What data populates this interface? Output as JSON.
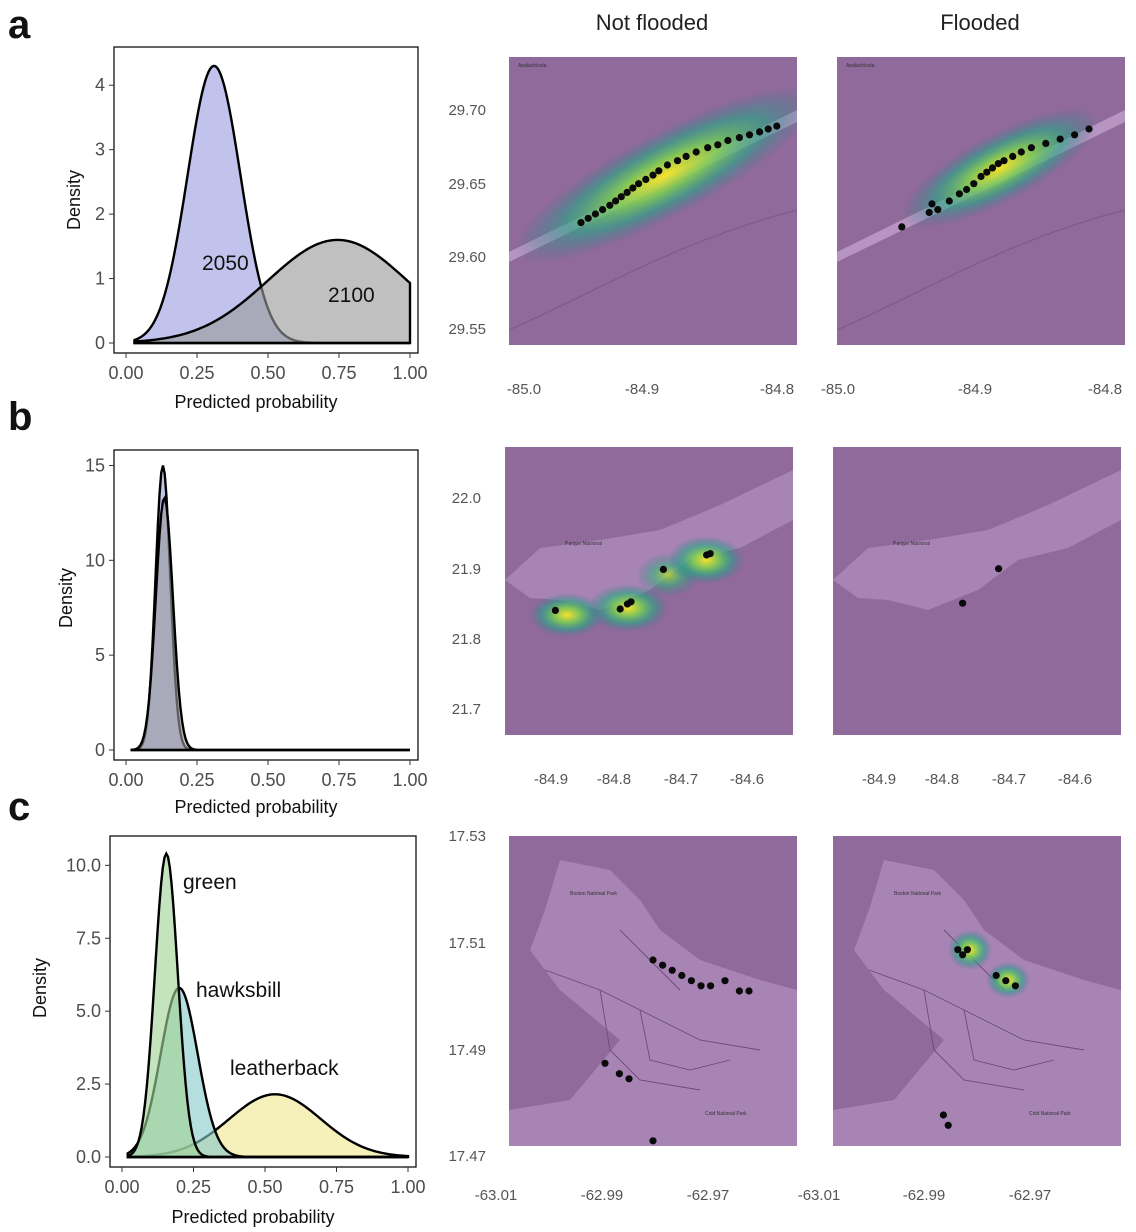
{
  "panel_letters": [
    "a",
    "b",
    "c"
  ],
  "column_titles": {
    "left": "Not flooded",
    "right": "Flooded"
  },
  "colors": {
    "y2050": "#9b9ee0",
    "y2100": "#9a9a9a",
    "green": "#9fd394",
    "hawksbill": "#88c9c9",
    "leatherback": "#f1e68f",
    "ocean": "#8f6a9a",
    "land": "#a784b3",
    "track": "#c8a6d2",
    "road": "#6d4c78"
  },
  "chart_data": [
    {
      "type": "area",
      "panel": "a",
      "xlabel": "Predicted probability",
      "ylabel": "Density",
      "xlim": [
        0,
        1
      ],
      "ylim": [
        0,
        4.5
      ],
      "xticks": [
        "0.00",
        "0.25",
        "0.50",
        "0.75",
        "1.00"
      ],
      "yticks": [
        "0",
        "1",
        "2",
        "3",
        "4"
      ],
      "series": [
        {
          "name": "2050",
          "color_key": "y2050",
          "mean": 0.31,
          "sd": 0.093,
          "peak": 4.3,
          "x_from": 0.03,
          "x_to": 1.0
        },
        {
          "name": "2100",
          "color_key": "y2100",
          "mean": 0.745,
          "sd": 0.245,
          "peak": 1.6,
          "x_from": 0.03,
          "x_to": 1.0
        }
      ]
    },
    {
      "type": "area",
      "panel": "b",
      "xlabel": "Predicted probability",
      "ylabel": "Density",
      "xlim": [
        0,
        1
      ],
      "ylim": [
        0,
        15.5
      ],
      "xticks": [
        "0.00",
        "0.25",
        "0.50",
        "0.75",
        "1.00"
      ],
      "yticks": [
        "0",
        "5",
        "10",
        "15"
      ],
      "series": [
        {
          "name": "",
          "color_key": "y2050",
          "mean": 0.13,
          "sd": 0.026,
          "peak": 15.0,
          "x_from": 0.02,
          "x_to": 1.0
        },
        {
          "name": "",
          "color_key": "y2100",
          "mean": 0.135,
          "sd": 0.03,
          "peak": 13.3,
          "x_from": 0.02,
          "x_to": 1.0
        }
      ]
    },
    {
      "type": "area",
      "panel": "c",
      "xlabel": "Predicted probability",
      "ylabel": "Density",
      "xlim": [
        0,
        1
      ],
      "ylim": [
        0,
        10.8
      ],
      "xticks": [
        "0.00",
        "0.25",
        "0.50",
        "0.75",
        "1.00"
      ],
      "yticks": [
        "0.0",
        "2.5",
        "5.0",
        "7.5",
        "10.0"
      ],
      "series": [
        {
          "name": "leatherback",
          "color_key": "leatherback",
          "mean": 0.535,
          "sd": 0.16,
          "peak": 2.15,
          "x_from": 0.02,
          "x_to": 1.0
        },
        {
          "name": "hawksbill",
          "color_key": "hawksbill",
          "mean": 0.2,
          "sd": 0.065,
          "peak": 5.8,
          "x_from": 0.02,
          "x_to": 1.0
        },
        {
          "name": "green",
          "color_key": "green",
          "mean": 0.155,
          "sd": 0.04,
          "peak": 10.4,
          "x_from": 0.02,
          "x_to": 1.0
        }
      ]
    },
    {
      "type": "scatter",
      "panel": "a",
      "map": "not-flooded",
      "xlim": [
        -85.0,
        -84.8
      ],
      "ylim": [
        29.53,
        29.73
      ],
      "xticks": [
        "-85.0",
        "-84.9",
        "-84.8"
      ],
      "yticks": [
        "29.55",
        "29.60",
        "29.65",
        "29.70"
      ],
      "points": [
        [
          -84.95,
          29.615
        ],
        [
          -84.945,
          29.618
        ],
        [
          -84.94,
          29.621
        ],
        [
          -84.935,
          29.624
        ],
        [
          -84.93,
          29.627
        ],
        [
          -84.926,
          29.63
        ],
        [
          -84.922,
          29.633
        ],
        [
          -84.918,
          29.636
        ],
        [
          -84.914,
          29.639
        ],
        [
          -84.91,
          29.642
        ],
        [
          -84.905,
          29.645
        ],
        [
          -84.9,
          29.648
        ],
        [
          -84.896,
          29.651
        ],
        [
          -84.89,
          29.655
        ],
        [
          -84.883,
          29.658
        ],
        [
          -84.877,
          29.661
        ],
        [
          -84.87,
          29.664
        ],
        [
          -84.862,
          29.667
        ],
        [
          -84.855,
          29.669
        ],
        [
          -84.848,
          29.672
        ],
        [
          -84.84,
          29.674
        ],
        [
          -84.833,
          29.676
        ],
        [
          -84.826,
          29.678
        ],
        [
          -84.82,
          29.68
        ],
        [
          -84.814,
          29.682
        ]
      ]
    },
    {
      "type": "scatter",
      "panel": "a",
      "map": "flooded",
      "xlim": [
        -85.0,
        -84.8
      ],
      "ylim": [
        29.53,
        29.73
      ],
      "xticks": [
        "-85.0",
        "-84.9",
        "-84.8"
      ],
      "yticks": [],
      "points": [
        [
          -84.955,
          29.612
        ],
        [
          -84.936,
          29.622
        ],
        [
          -84.934,
          29.628
        ],
        [
          -84.93,
          29.624
        ],
        [
          -84.922,
          29.63
        ],
        [
          -84.915,
          29.635
        ],
        [
          -84.91,
          29.638
        ],
        [
          -84.905,
          29.642
        ],
        [
          -84.9,
          29.647
        ],
        [
          -84.896,
          29.65
        ],
        [
          -84.892,
          29.653
        ],
        [
          -84.888,
          29.656
        ],
        [
          -84.884,
          29.658
        ],
        [
          -84.878,
          29.661
        ],
        [
          -84.872,
          29.664
        ],
        [
          -84.865,
          29.667
        ],
        [
          -84.855,
          29.67
        ],
        [
          -84.845,
          29.673
        ],
        [
          -84.835,
          29.676
        ],
        [
          -84.825,
          29.68
        ]
      ]
    },
    {
      "type": "scatter",
      "panel": "b",
      "map": "not-flooded",
      "xlim": [
        -84.95,
        -84.55
      ],
      "ylim": [
        21.65,
        22.05
      ],
      "xticks": [
        "-84.9",
        "-84.8",
        "-84.7",
        "-84.6"
      ],
      "yticks": [
        "21.7",
        "21.8",
        "21.9",
        "22.0"
      ],
      "points": [
        [
          -84.88,
          21.823
        ],
        [
          -84.79,
          21.825
        ],
        [
          -84.78,
          21.832
        ],
        [
          -84.775,
          21.835
        ],
        [
          -84.73,
          21.88
        ],
        [
          -84.67,
          21.9
        ],
        [
          -84.665,
          21.902
        ]
      ]
    },
    {
      "type": "scatter",
      "panel": "b",
      "map": "flooded",
      "xlim": [
        -84.95,
        -84.55
      ],
      "ylim": [
        21.65,
        22.05
      ],
      "xticks": [
        "-84.9",
        "-84.8",
        "-84.7",
        "-84.6"
      ],
      "yticks": [],
      "points": [
        [
          -84.77,
          21.833
        ],
        [
          -84.72,
          21.881
        ]
      ]
    },
    {
      "type": "scatter",
      "panel": "c",
      "map": "not-flooded",
      "xlim": [
        -63.01,
        -62.95
      ],
      "ylim": [
        17.47,
        17.53
      ],
      "xticks": [
        "-63.01",
        "-62.99",
        "-62.97"
      ],
      "yticks": [
        "17.47",
        "17.49",
        "17.51",
        "17.53"
      ],
      "points": [
        [
          -62.98,
          17.506
        ],
        [
          -62.978,
          17.505
        ],
        [
          -62.976,
          17.504
        ],
        [
          -62.974,
          17.503
        ],
        [
          -62.972,
          17.502
        ],
        [
          -62.97,
          17.501
        ],
        [
          -62.968,
          17.501
        ],
        [
          -62.965,
          17.502
        ],
        [
          -62.962,
          17.5
        ],
        [
          -62.96,
          17.5
        ],
        [
          -62.99,
          17.486
        ],
        [
          -62.987,
          17.484
        ],
        [
          -62.985,
          17.483
        ],
        [
          -62.98,
          17.471
        ]
      ]
    },
    {
      "type": "scatter",
      "panel": "c",
      "map": "flooded",
      "xlim": [
        -63.01,
        -62.95
      ],
      "ylim": [
        17.47,
        17.53
      ],
      "xticks": [
        "-63.01",
        "-62.99",
        "-62.97"
      ],
      "yticks": [],
      "points": [
        [
          -62.984,
          17.508
        ],
        [
          -62.983,
          17.507
        ],
        [
          -62.982,
          17.508
        ],
        [
          -62.976,
          17.503
        ],
        [
          -62.974,
          17.502
        ],
        [
          -62.972,
          17.501
        ],
        [
          -62.987,
          17.476
        ],
        [
          -62.986,
          17.474
        ]
      ]
    }
  ]
}
